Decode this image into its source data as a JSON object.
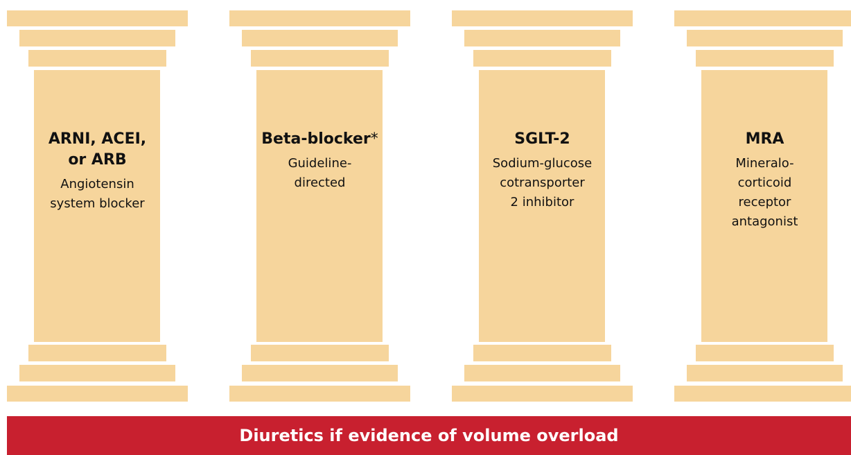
{
  "pillars": [
    {
      "title_lines": [
        "ARNI, ACEI,",
        "or ARB"
      ],
      "subtitle_lines": [
        "Angiotensin",
        "system blocker"
      ]
    },
    {
      "title_lines": [
        "Beta-blocker"
      ],
      "marker": "*",
      "subtitle_lines": [
        "Guideline-",
        "directed"
      ]
    },
    {
      "title_lines": [
        "SGLT-2"
      ],
      "subtitle_lines": [
        "Sodium-glucose",
        "cotransporter",
        "2 inhibitor"
      ]
    },
    {
      "title_lines": [
        "MRA"
      ],
      "subtitle_lines": [
        "Mineralo-",
        "corticoid",
        "receptor",
        "antagonist"
      ]
    }
  ],
  "foundation": "Diuretics if evidence of volume overload"
}
